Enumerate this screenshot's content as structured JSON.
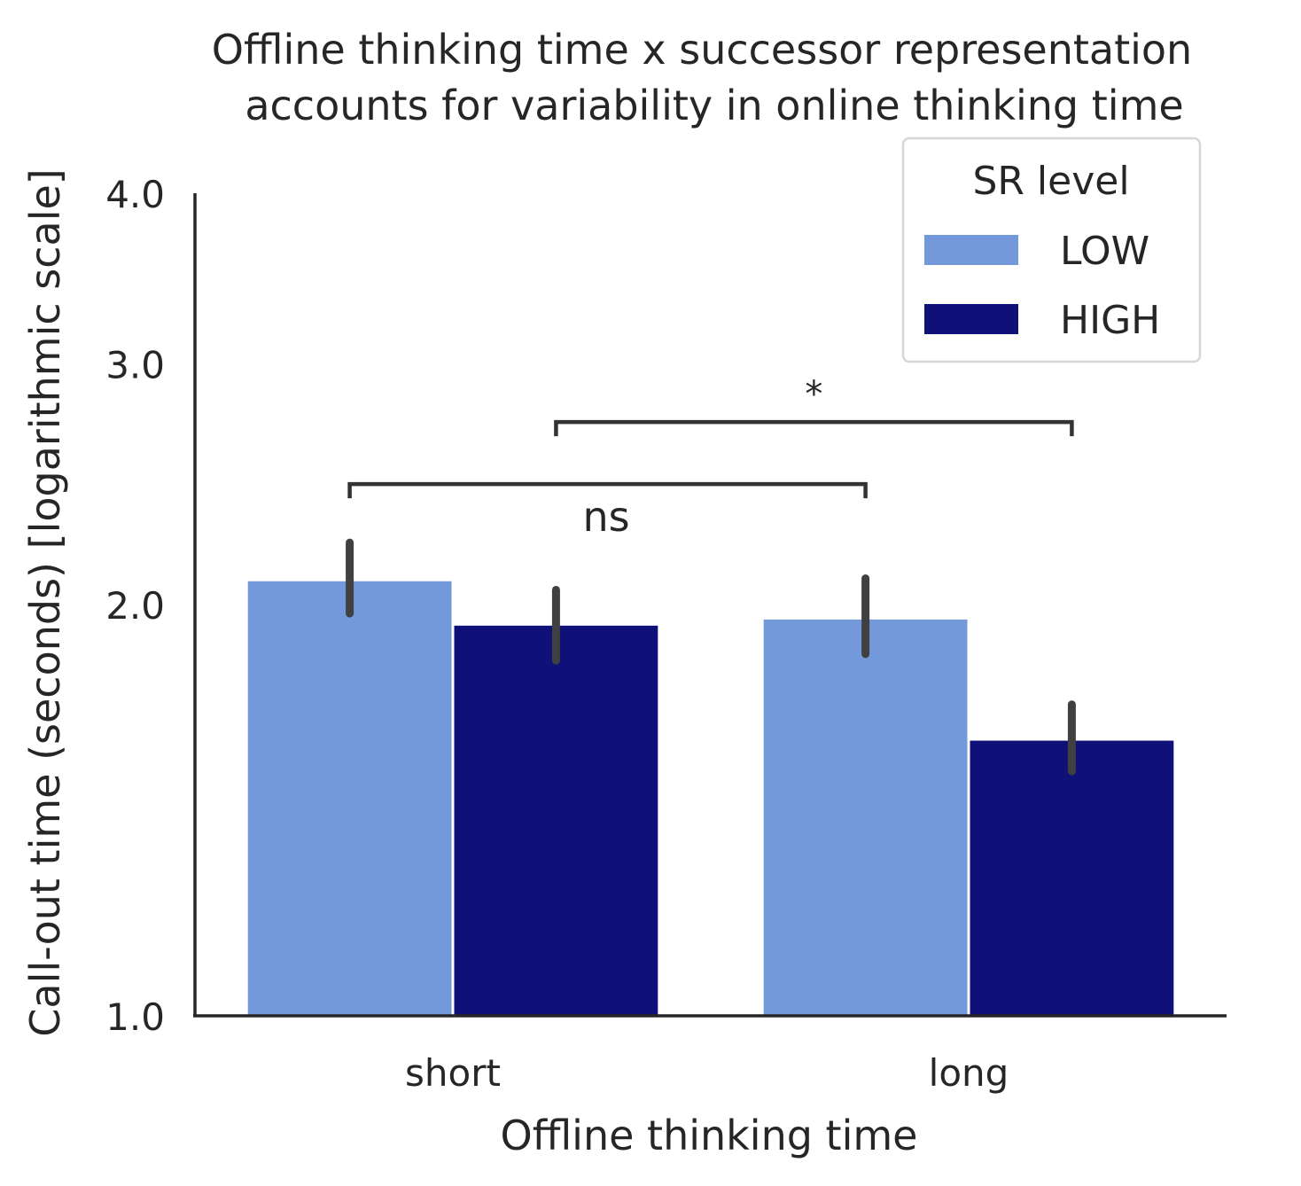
{
  "chart_data": {
    "type": "bar",
    "title_lines": [
      "Offline thinking time x successor representation",
      "accounts for variability in online thinking time"
    ],
    "xlabel": "Offline thinking time",
    "ylabel": "Call-out time (seconds) [logarithmic scale]",
    "yscale": "log",
    "ylim": [
      1.0,
      4.0
    ],
    "yticks": [
      1.0,
      2.0,
      3.0,
      4.0
    ],
    "ytick_labels": [
      "1.0",
      "2.0",
      "3.0",
      "4.0"
    ],
    "categories": [
      "short",
      "long"
    ],
    "series": [
      {
        "name": "LOW",
        "color": "#7399db",
        "values": [
          2.08,
          1.95
        ],
        "ci_low": [
          1.97,
          1.84
        ],
        "ci_high": [
          2.22,
          2.09
        ]
      },
      {
        "name": "HIGH",
        "color": "#0f1178",
        "values": [
          1.93,
          1.59
        ],
        "ci_low": [
          1.82,
          1.51
        ],
        "ci_high": [
          2.05,
          1.69
        ]
      }
    ],
    "legend": {
      "title": "SR level",
      "placement": "top-right"
    },
    "annotations": [
      {
        "label": "ns",
        "from": {
          "category": 0,
          "series": 0
        },
        "to": {
          "category": 1,
          "series": 0
        },
        "y": 2.45
      },
      {
        "label": "*",
        "from": {
          "category": 0,
          "series": 1
        },
        "to": {
          "category": 1,
          "series": 1
        },
        "y": 2.72
      }
    ],
    "grid": false
  }
}
